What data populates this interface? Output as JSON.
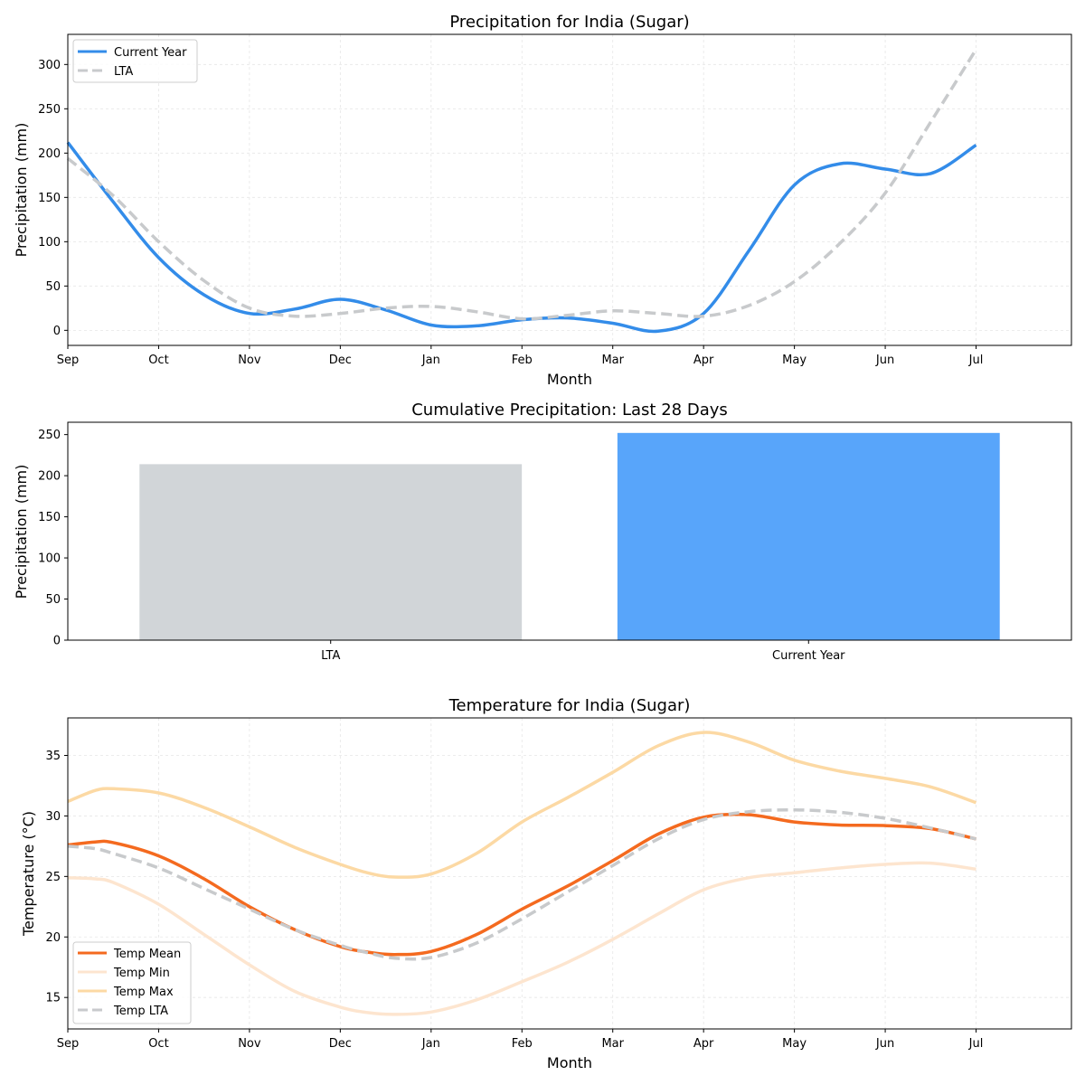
{
  "chart_data": [
    {
      "type": "line",
      "title": "Precipitation for India (Sugar)",
      "xlabel": "Month",
      "ylabel": "Precipitation (mm)",
      "x_tick_labels": [
        "Sep",
        "Oct",
        "Nov",
        "Dec",
        "Jan",
        "Feb",
        "Mar",
        "Apr",
        "May",
        "Jun",
        "Jul"
      ],
      "xlim": [
        0,
        11.05
      ],
      "ylim": [
        -17,
        334
      ],
      "y_ticks": [
        0,
        50,
        100,
        150,
        200,
        250,
        300
      ],
      "grid": true,
      "legend_position": "top-left",
      "series": [
        {
          "name": "Current Year",
          "color": "#338ce9",
          "style": "solid",
          "x": [
            0,
            0.5,
            1,
            1.5,
            2,
            2.5,
            3,
            3.5,
            4,
            4.5,
            5,
            5.5,
            6,
            6.5,
            7,
            7.5,
            8,
            8.5,
            9,
            9.5,
            10
          ],
          "values": [
            212,
            145,
            82,
            40,
            19,
            24,
            35,
            23,
            6,
            5,
            12,
            14,
            8,
            -1,
            19,
            90,
            164,
            188,
            182,
            177,
            209
          ]
        },
        {
          "name": "LTA",
          "color": "#c8cacc",
          "style": "dashed",
          "x": [
            0,
            0.5,
            1,
            1.5,
            2,
            2.5,
            3,
            3.5,
            4,
            4.5,
            5,
            5.5,
            6,
            6.5,
            7,
            7.5,
            8,
            8.5,
            9,
            9.5,
            10
          ],
          "values": [
            194,
            152,
            100,
            56,
            25,
            16,
            19,
            25,
            27,
            21,
            13,
            17,
            22,
            19,
            16,
            28,
            55,
            98,
            155,
            235,
            317
          ]
        }
      ]
    },
    {
      "type": "bar",
      "title": "Cumulative Precipitation: Last 28 Days",
      "ylabel": "Precipitation (mm)",
      "categories": [
        "LTA",
        "Current Year"
      ],
      "values": [
        214,
        252
      ],
      "colors": [
        "#d1d5d8",
        "#58a5fa"
      ],
      "ylim": [
        0,
        265
      ],
      "y_ticks": [
        0,
        50,
        100,
        150,
        200,
        250
      ],
      "grid": false
    },
    {
      "type": "line",
      "title": "Temperature for India (Sugar)",
      "xlabel": "Month",
      "ylabel": "Temperature (°C)",
      "x_tick_labels": [
        "Sep",
        "Oct",
        "Nov",
        "Dec",
        "Jan",
        "Feb",
        "Mar",
        "Apr",
        "May",
        "Jun",
        "Jul"
      ],
      "xlim": [
        0,
        11.05
      ],
      "ylim": [
        12.4,
        38.1
      ],
      "y_ticks": [
        15,
        20,
        25,
        30,
        35
      ],
      "grid": true,
      "legend_position": "bottom-left",
      "series": [
        {
          "name": "Temp Mean",
          "color": "#f46a1f",
          "style": "solid",
          "x": [
            0,
            0.3,
            0.5,
            1,
            1.5,
            2,
            2.5,
            3,
            3.3,
            3.6,
            4,
            4.5,
            5,
            5.5,
            6,
            6.5,
            7,
            7.5,
            8,
            8.5,
            9,
            9.5,
            10
          ],
          "values": [
            27.6,
            27.85,
            27.8,
            26.7,
            24.8,
            22.5,
            20.6,
            19.2,
            18.75,
            18.55,
            18.8,
            20.2,
            22.3,
            24.2,
            26.3,
            28.5,
            29.9,
            30.1,
            29.5,
            29.25,
            29.2,
            28.95,
            28.1
          ]
        },
        {
          "name": "Temp Min",
          "color": "#fde5cf",
          "style": "solid",
          "x": [
            0,
            0.3,
            0.5,
            1,
            1.5,
            2,
            2.5,
            3,
            3.3,
            3.6,
            4,
            4.5,
            5,
            5.5,
            6,
            6.5,
            7,
            7.5,
            8,
            8.5,
            9,
            9.5,
            10
          ],
          "values": [
            24.9,
            24.8,
            24.5,
            22.7,
            20.2,
            17.7,
            15.5,
            14.2,
            13.75,
            13.6,
            13.8,
            14.8,
            16.3,
            17.9,
            19.8,
            21.9,
            23.9,
            24.9,
            25.3,
            25.7,
            26.0,
            26.1,
            25.6
          ]
        },
        {
          "name": "Temp Max",
          "color": "#fcd9a4",
          "style": "solid",
          "x": [
            0,
            0.3,
            0.5,
            1,
            1.5,
            2,
            2.5,
            3,
            3.3,
            3.6,
            4,
            4.5,
            5,
            5.5,
            6,
            6.5,
            7,
            7.5,
            8,
            8.5,
            9,
            9.5,
            10
          ],
          "values": [
            31.2,
            32.1,
            32.25,
            31.9,
            30.7,
            29.1,
            27.4,
            26.0,
            25.3,
            24.95,
            25.2,
            26.9,
            29.5,
            31.5,
            33.6,
            35.8,
            36.9,
            36.1,
            34.6,
            33.7,
            33.1,
            32.4,
            31.1
          ]
        },
        {
          "name": "Temp LTA",
          "color": "#c8cacc",
          "style": "dashed",
          "x": [
            0,
            0.3,
            0.5,
            1,
            1.5,
            2,
            2.5,
            3,
            3.3,
            3.6,
            4,
            4.5,
            5,
            5.5,
            6,
            6.5,
            7,
            7.5,
            8,
            8.5,
            9,
            9.5,
            10
          ],
          "values": [
            27.5,
            27.3,
            26.9,
            25.7,
            24.0,
            22.3,
            20.6,
            19.3,
            18.7,
            18.25,
            18.3,
            19.5,
            21.5,
            23.7,
            25.9,
            28.1,
            29.7,
            30.35,
            30.5,
            30.3,
            29.8,
            29.0,
            28.1
          ]
        }
      ]
    }
  ]
}
